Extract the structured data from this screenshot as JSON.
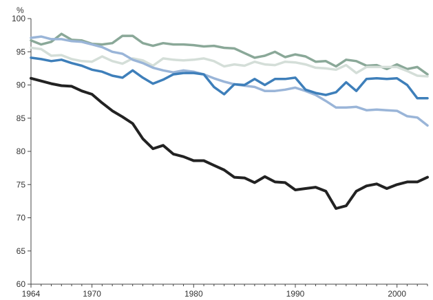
{
  "chart_data": {
    "type": "line",
    "unit_label": "%",
    "xlim": [
      1964,
      2003
    ],
    "ylim": [
      60,
      100
    ],
    "x_ticks": [
      1964,
      1970,
      1980,
      1990,
      2000
    ],
    "y_ticks": [
      60,
      65,
      70,
      75,
      80,
      85,
      90,
      95,
      100
    ],
    "grid": false,
    "x": [
      1964,
      1965,
      1966,
      1967,
      1968,
      1969,
      1970,
      1971,
      1972,
      1973,
      1974,
      1975,
      1976,
      1977,
      1978,
      1979,
      1980,
      1981,
      1982,
      1983,
      1984,
      1985,
      1986,
      1987,
      1988,
      1989,
      1990,
      1991,
      1992,
      1993,
      1994,
      1995,
      1996,
      1997,
      1998,
      1999,
      2000,
      2001,
      2002,
      2003
    ],
    "series": [
      {
        "color": "#8aa898",
        "values": [
          96.7,
          96.1,
          96.5,
          97.7,
          96.8,
          96.7,
          96.2,
          96.1,
          96.3,
          97.4,
          97.4,
          96.3,
          95.9,
          96.3,
          96.1,
          96.1,
          96.0,
          95.8,
          95.9,
          95.6,
          95.5,
          94.8,
          94.1,
          94.4,
          95.0,
          94.2,
          94.6,
          94.3,
          93.5,
          93.6,
          92.8,
          93.8,
          93.6,
          92.9,
          93.0,
          92.4,
          93.1,
          92.4,
          92.7,
          91.6
        ]
      },
      {
        "color": "#d4ded8",
        "values": [
          95.6,
          95.4,
          94.4,
          94.5,
          93.9,
          93.6,
          93.5,
          94.3,
          93.6,
          93.2,
          94.0,
          93.7,
          92.9,
          94.0,
          93.8,
          93.7,
          93.8,
          94.0,
          93.6,
          92.8,
          93.1,
          92.9,
          93.5,
          93.1,
          93.0,
          93.5,
          93.4,
          93.1,
          92.6,
          92.5,
          92.3,
          93.0,
          91.8,
          92.7,
          92.7,
          92.7,
          92.7,
          92.1,
          91.4,
          91.3
        ]
      },
      {
        "color": "#9ab5d8",
        "values": [
          97.1,
          97.3,
          96.9,
          96.9,
          96.6,
          96.5,
          96.1,
          95.7,
          95.0,
          94.7,
          93.8,
          93.3,
          92.6,
          92.2,
          91.9,
          92.2,
          92.0,
          91.6,
          91.0,
          90.5,
          90.1,
          89.9,
          89.7,
          89.1,
          89.1,
          89.3,
          89.6,
          89.1,
          88.5,
          87.6,
          86.6,
          86.6,
          86.7,
          86.2,
          86.3,
          86.2,
          86.1,
          85.3,
          85.1,
          83.9
        ]
      },
      {
        "color": "#3e7fba",
        "values": [
          94.1,
          93.9,
          93.6,
          93.8,
          93.3,
          92.9,
          92.3,
          92.0,
          91.4,
          91.1,
          92.2,
          91.1,
          90.2,
          90.8,
          91.6,
          91.8,
          91.8,
          91.6,
          89.7,
          88.6,
          90.1,
          90.0,
          90.9,
          90.0,
          90.9,
          90.9,
          91.1,
          89.3,
          88.8,
          88.5,
          88.9,
          90.4,
          89.1,
          90.9,
          91.0,
          90.9,
          91.0,
          90.0,
          88.0,
          88.0
        ]
      },
      {
        "color": "#222222",
        "values": [
          91.0,
          90.6,
          90.2,
          89.9,
          89.8,
          89.1,
          88.6,
          87.3,
          86.1,
          85.2,
          84.2,
          81.9,
          80.4,
          80.9,
          79.6,
          79.2,
          78.6,
          78.6,
          77.9,
          77.2,
          76.1,
          76.0,
          75.3,
          76.2,
          75.4,
          75.3,
          74.2,
          74.4,
          74.6,
          74.0,
          71.4,
          71.8,
          74.0,
          74.8,
          75.1,
          74.4,
          75.0,
          75.4,
          75.4,
          76.1
        ]
      }
    ]
  }
}
